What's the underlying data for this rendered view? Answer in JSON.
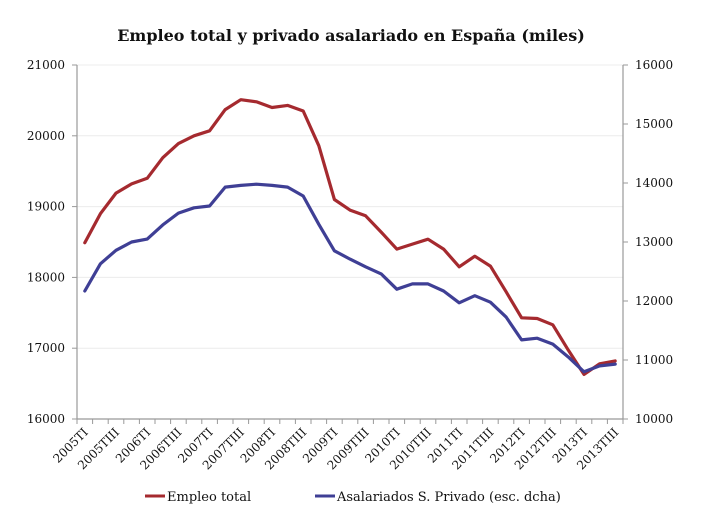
{
  "chart_data": {
    "type": "line",
    "title": "Empleo total y privado asalariado en España (miles)",
    "xlabel": "",
    "ylabel_left": "",
    "ylabel_right": "",
    "x": [
      "2005TI",
      "2005TII",
      "2005TIII",
      "2005TIV",
      "2006TI",
      "2006TII",
      "2006TIII",
      "2006TIV",
      "2007TI",
      "2007TII",
      "2007TIII",
      "2007TIV",
      "2008TI",
      "2008TII",
      "2008TIII",
      "2008TIV",
      "2009TI",
      "2009TII",
      "2009TIII",
      "2009TIV",
      "2010TI",
      "2010TII",
      "2010TIII",
      "2010TIV",
      "2011TI",
      "2011TII",
      "2011TIII",
      "2011TIV",
      "2012TI",
      "2012TII",
      "2012TIII",
      "2012TIV",
      "2013TI",
      "2013TII",
      "2013TIII"
    ],
    "x_tick_labels": [
      "2005TI",
      "2005TIII",
      "2006TI",
      "2006TIII",
      "2007TI",
      "2007TIII",
      "2008TI",
      "2008TIII",
      "2009TI",
      "2009TIII",
      "2010TI",
      "2010TIII",
      "2011TI",
      "2011TIII",
      "2012TI",
      "2012TIII",
      "2013TI",
      "2013TIII"
    ],
    "y_left": {
      "range": [
        16000,
        21000
      ],
      "ticks": [
        "16000",
        "17000",
        "18000",
        "19000",
        "20000",
        "21000"
      ]
    },
    "y_right": {
      "range": [
        10000,
        16000
      ],
      "ticks": [
        "10000",
        "11000",
        "12000",
        "13000",
        "14000",
        "15000",
        "16000"
      ]
    },
    "grid": true,
    "legend_position": "bottom",
    "series": [
      {
        "name": "Empleo total",
        "axis": "left",
        "color": "#a52a2f",
        "values": [
          18490,
          18900,
          19190,
          19320,
          19400,
          19690,
          19890,
          20000,
          20070,
          20370,
          20510,
          20480,
          20400,
          20430,
          20350,
          19860,
          19100,
          18950,
          18870,
          18640,
          18400,
          18470,
          18540,
          18400,
          18150,
          18300,
          18160,
          17800,
          17430,
          17420,
          17330,
          16970,
          16630,
          16780,
          16820
        ]
      },
      {
        "name": "Asalariados S. Privado (esc. dcha)",
        "axis": "right",
        "color": "#3f3f95",
        "values": [
          12170,
          12630,
          12860,
          13000,
          13050,
          13290,
          13490,
          13580,
          13610,
          13930,
          13960,
          13980,
          13960,
          13930,
          13780,
          13300,
          12850,
          12710,
          12580,
          12460,
          12200,
          12290,
          12290,
          12170,
          11970,
          12090,
          11980,
          11730,
          11340,
          11370,
          11270,
          11050,
          10800,
          10900,
          10930
        ]
      }
    ]
  }
}
